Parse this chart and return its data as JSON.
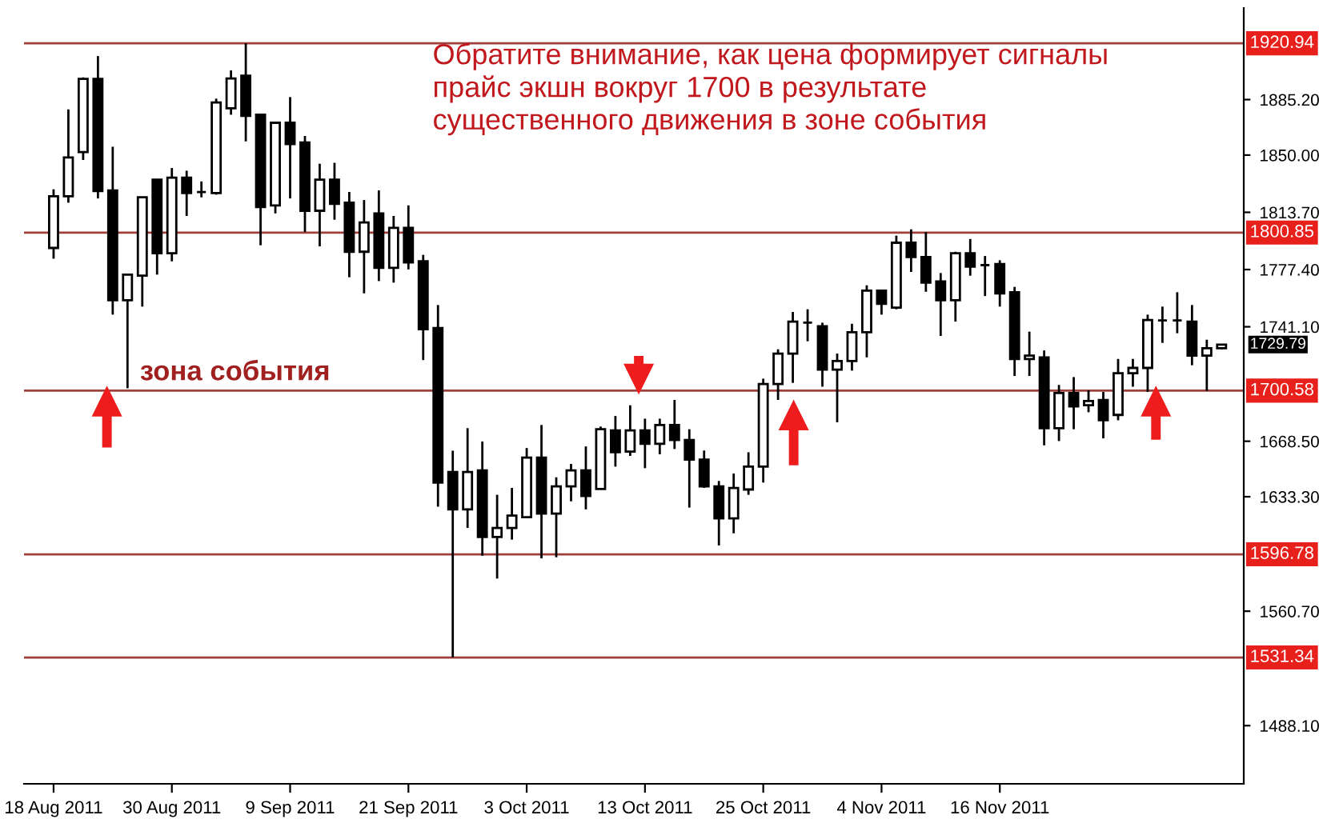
{
  "chart_data": {
    "type": "candlestick",
    "categories": [
      "18 Aug 2011",
      null,
      null,
      null,
      null,
      null,
      null,
      null,
      "30 Aug 2011",
      null,
      null,
      null,
      null,
      null,
      null,
      null,
      "9 Sep 2011",
      null,
      null,
      null,
      null,
      null,
      null,
      null,
      "21 Sep 2011",
      null,
      null,
      null,
      null,
      null,
      null,
      null,
      "3 Oct 2011",
      null,
      null,
      null,
      null,
      null,
      null,
      null,
      "13 Oct 2011",
      null,
      null,
      null,
      null,
      null,
      null,
      null,
      "25 Oct 2011",
      null,
      null,
      null,
      null,
      null,
      null,
      null,
      "4 Nov 2011",
      null,
      null,
      null,
      null,
      null,
      null,
      null,
      "16 Nov 2011",
      null,
      null,
      null,
      null,
      null,
      null,
      null,
      null,
      null,
      null,
      null,
      null,
      null,
      null,
      null
    ],
    "ohlc": [
      [
        1791.1,
        1828.3,
        1784.3,
        1823.9
      ],
      [
        1823.9,
        1879.0,
        1819.8,
        1848.5
      ],
      [
        1851.9,
        1899.3,
        1846.9,
        1898.3
      ],
      [
        1898.3,
        1912.8,
        1822.5,
        1827.2
      ],
      [
        1827.6,
        1855.3,
        1748.8,
        1757.9
      ],
      [
        1757.9,
        1774.2,
        1702.1,
        1774.2
      ],
      [
        1773.5,
        1823.2,
        1753.9,
        1823.2
      ],
      [
        1834.4,
        1834.4,
        1774.2,
        1787.7
      ],
      [
        1787.7,
        1841.8,
        1782.6,
        1835.7
      ],
      [
        1835.7,
        1840.1,
        1811.4,
        1825.9
      ],
      [
        1826.6,
        1833.3,
        1823.2,
        1826.6
      ],
      [
        1825.9,
        1885.8,
        1824.9,
        1883.4
      ],
      [
        1879.7,
        1903.7,
        1875.6,
        1898.6
      ],
      [
        1900.3,
        1920.9,
        1858.7,
        1874.9
      ],
      [
        1875.6,
        1875.6,
        1792.8,
        1817.1
      ],
      [
        1818.1,
        1870.5,
        1813.0,
        1870.5
      ],
      [
        1870.5,
        1886.8,
        1822.5,
        1857.0
      ],
      [
        1858.0,
        1862.1,
        1801.2,
        1814.7
      ],
      [
        1814.7,
        1844.5,
        1792.1,
        1834.4
      ],
      [
        1834.4,
        1845.1,
        1809.0,
        1819.1
      ],
      [
        1819.8,
        1826.6,
        1772.5,
        1788.7
      ],
      [
        1788.7,
        1821.5,
        1762.3,
        1807.3
      ],
      [
        1813.0,
        1827.6,
        1770.1,
        1778.5
      ],
      [
        1778.5,
        1811.4,
        1769.1,
        1803.9
      ],
      [
        1803.9,
        1818.1,
        1777.5,
        1781.9
      ],
      [
        1782.6,
        1786.7,
        1720.0,
        1739.6
      ],
      [
        1740.3,
        1754.9,
        1627.0,
        1642.3
      ],
      [
        1649.0,
        1662.5,
        1531.3,
        1625.3
      ],
      [
        1625.3,
        1676.8,
        1613.5,
        1649.0
      ],
      [
        1650.0,
        1668.3,
        1595.9,
        1607.8
      ],
      [
        1607.8,
        1634.5,
        1581.4,
        1613.5
      ],
      [
        1613.5,
        1638.9,
        1606.1,
        1621.3
      ],
      [
        1620.3,
        1664.2,
        1620.3,
        1658.1
      ],
      [
        1658.1,
        1678.8,
        1594.2,
        1622.6
      ],
      [
        1622.6,
        1645.6,
        1594.9,
        1639.9
      ],
      [
        1639.9,
        1654.1,
        1630.4,
        1650.0
      ],
      [
        1650.0,
        1665.2,
        1625.3,
        1633.8
      ],
      [
        1638.2,
        1677.8,
        1638.2,
        1676.1
      ],
      [
        1675.4,
        1684.5,
        1652.4,
        1661.5
      ],
      [
        1661.9,
        1691.3,
        1659.2,
        1675.4
      ],
      [
        1675.4,
        1682.8,
        1651.4,
        1666.9
      ],
      [
        1666.9,
        1682.8,
        1660.2,
        1678.8
      ],
      [
        1678.8,
        1694.7,
        1663.6,
        1669.3
      ],
      [
        1669.3,
        1676.1,
        1626.4,
        1656.8
      ],
      [
        1656.8,
        1662.6,
        1638.9,
        1639.9
      ],
      [
        1639.9,
        1643.3,
        1602.4,
        1619.6
      ],
      [
        1619.6,
        1648.0,
        1610.1,
        1638.9
      ],
      [
        1637.9,
        1661.5,
        1634.5,
        1652.4
      ],
      [
        1652.4,
        1708.2,
        1642.3,
        1704.8
      ],
      [
        1704.8,
        1726.8,
        1694.7,
        1724.1
      ],
      [
        1724.1,
        1750.5,
        1705.5,
        1744.4
      ],
      [
        1743.7,
        1752.2,
        1731.9,
        1743.7
      ],
      [
        1741.4,
        1743.7,
        1703.1,
        1713.9
      ],
      [
        1713.9,
        1724.1,
        1680.5,
        1719.4
      ],
      [
        1719.4,
        1743.0,
        1713.3,
        1737.6
      ],
      [
        1737.6,
        1767.4,
        1721.7,
        1764.0
      ],
      [
        1764.0,
        1764.0,
        1748.8,
        1755.6
      ],
      [
        1753.2,
        1798.9,
        1752.2,
        1794.4
      ],
      [
        1794.4,
        1802.9,
        1775.9,
        1785.3
      ],
      [
        1785.3,
        1801.2,
        1763.3,
        1769.1
      ],
      [
        1769.8,
        1775.2,
        1735.3,
        1757.9
      ],
      [
        1757.9,
        1788.7,
        1744.4,
        1787.7
      ],
      [
        1787.7,
        1796.8,
        1773.5,
        1779.2
      ],
      [
        1780.2,
        1786.0,
        1760.6,
        1780.2
      ],
      [
        1780.9,
        1783.3,
        1753.9,
        1762.3
      ],
      [
        1763.0,
        1766.4,
        1709.9,
        1720.7
      ],
      [
        1720.7,
        1738.0,
        1709.9,
        1722.8
      ],
      [
        1721.7,
        1726.1,
        1665.9,
        1676.8
      ],
      [
        1676.8,
        1704.2,
        1668.6,
        1699.1
      ],
      [
        1699.1,
        1709.2,
        1676.1,
        1690.6
      ],
      [
        1691.3,
        1700.8,
        1686.9,
        1694.0
      ],
      [
        1694.7,
        1699.8,
        1670.3,
        1681.8
      ],
      [
        1685.2,
        1720.7,
        1681.8,
        1711.6
      ],
      [
        1711.6,
        1720.7,
        1703.1,
        1715.0
      ],
      [
        1715.0,
        1748.8,
        1699.8,
        1745.4
      ],
      [
        1745.1,
        1753.9,
        1730.9,
        1745.1
      ],
      [
        1745.1,
        1763.0,
        1737.0,
        1745.1
      ],
      [
        1744.4,
        1754.9,
        1716.7,
        1722.8
      ],
      [
        1722.8,
        1732.9,
        1700.4,
        1727.5
      ],
      [
        1727.5,
        1730.2,
        1726.8,
        1729.8
      ]
    ],
    "ylim": [
      1451.2,
      1943.3
    ],
    "yticks": [
      {
        "value": 1488.1,
        "label": "1488.10"
      },
      {
        "value": 1560.7,
        "label": "1560.70"
      },
      {
        "value": 1633.3,
        "label": "1633.30"
      },
      {
        "value": 1668.5,
        "label": "1668.50"
      },
      {
        "value": 1741.1,
        "label": "1741.10"
      },
      {
        "value": 1777.4,
        "label": "1777.40"
      },
      {
        "value": 1813.7,
        "label": "1813.70"
      },
      {
        "value": 1850.0,
        "label": "1850.00"
      },
      {
        "value": 1885.2,
        "label": "1885.20"
      }
    ],
    "ref_lines": [
      {
        "axis": "y",
        "value": 1920.94,
        "label": "1920.94",
        "color": "#a0403c"
      },
      {
        "axis": "y",
        "value": 1800.85,
        "label": "1800.85",
        "color": "#a0403c"
      },
      {
        "axis": "y",
        "value": 1700.58,
        "label": "1700.58",
        "color": "#a0403c"
      },
      {
        "axis": "y",
        "value": 1596.78,
        "label": "1596.78",
        "color": "#a0403c"
      },
      {
        "axis": "y",
        "value": 1531.34,
        "label": "1531.34",
        "color": "#a0403c"
      }
    ],
    "annotations": [
      "Обратите внимание, как цена формирует сигналы\nпрайс экшн вокруг 1700 в результате\nсущественного движения в зоне события",
      {
        "text": "зона события",
        "y": 1700.58
      },
      "1729.79"
    ],
    "grid": false,
    "legend": false
  }
}
